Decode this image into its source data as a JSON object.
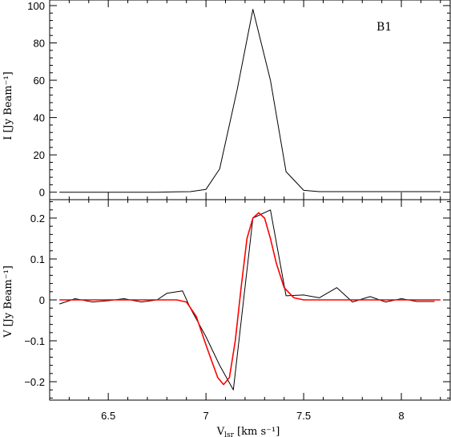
{
  "chart_data": [
    {
      "type": "line",
      "annotation": "B1",
      "ylabel": "I [Jy Beam⁻¹]",
      "xlabel": "",
      "xlim": [
        6.2,
        8.25
      ],
      "ylim": [
        -4,
        103
      ],
      "x_ticks": [
        "6.5",
        "7",
        "7.5",
        "8"
      ],
      "y_ticks": [
        "0",
        "20",
        "40",
        "60",
        "80",
        "100"
      ],
      "y_tick_values": [
        0,
        20,
        40,
        60,
        80,
        100
      ],
      "grid": false,
      "series": [
        {
          "color": "#000000",
          "x": [
            6.25,
            6.33,
            6.42,
            6.5,
            6.58,
            6.67,
            6.75,
            6.84,
            6.92,
            7.0,
            7.07,
            7.16,
            7.24,
            7.33,
            7.41,
            7.5,
            7.58,
            7.67,
            7.75,
            7.84,
            7.92,
            8.0,
            8.08,
            8.17,
            8.2
          ],
          "values": [
            0,
            0,
            0,
            0,
            0,
            0,
            0,
            0.2,
            0.3,
            1.5,
            12.5,
            55,
            98,
            60,
            11,
            1,
            0.3,
            0.3,
            0.3,
            0.3,
            0.3,
            0.3,
            0.3,
            0.3,
            0.3
          ]
        }
      ]
    },
    {
      "type": "line",
      "ylabel": "V [Jy Beam⁻¹]",
      "xlabel": "V",
      "xlabel_sub": "lsr",
      "xlabel_rest": " [km s⁻¹]",
      "xlim": [
        6.2,
        8.25
      ],
      "ylim": [
        -0.245,
        0.245
      ],
      "x_ticks": [
        "6.5",
        "7",
        "7.5",
        "8"
      ],
      "x_tick_values": [
        6.5,
        7,
        7.5,
        8
      ],
      "y_ticks": [
        "−0.2",
        "−0.1",
        "0",
        "0.1",
        "0.2"
      ],
      "y_tick_values": [
        -0.2,
        -0.1,
        0,
        0.1,
        0.2
      ],
      "grid": false,
      "series": [
        {
          "color": "#000000",
          "x": [
            6.25,
            6.33,
            6.42,
            6.5,
            6.58,
            6.67,
            6.75,
            6.8,
            6.88,
            6.92,
            7.0,
            7.07,
            7.14,
            7.24,
            7.33,
            7.41,
            7.5,
            7.58,
            7.67,
            7.75,
            7.84,
            7.92,
            8.0,
            8.08,
            8.17
          ],
          "values": [
            -0.01,
            0.003,
            -0.005,
            -0.002,
            0.003,
            -0.005,
            0.0,
            0.016,
            0.022,
            -0.02,
            -0.09,
            -0.16,
            -0.22,
            0.2,
            0.22,
            0.01,
            0.012,
            0.005,
            0.03,
            -0.005,
            0.008,
            -0.005,
            0.003,
            -0.004,
            -0.004
          ]
        },
        {
          "color": "#ff0000",
          "x": [
            6.25,
            6.85,
            6.9,
            6.95,
            7.0,
            7.03,
            7.06,
            7.09,
            7.12,
            7.15,
            7.18,
            7.21,
            7.24,
            7.27,
            7.3,
            7.33,
            7.36,
            7.4,
            7.45,
            7.5,
            8.2
          ],
          "values": [
            0.0,
            0.0,
            -0.005,
            -0.04,
            -0.11,
            -0.15,
            -0.19,
            -0.207,
            -0.19,
            -0.1,
            0.03,
            0.15,
            0.2,
            0.213,
            0.2,
            0.15,
            0.09,
            0.03,
            0.005,
            0.0,
            0.0
          ]
        }
      ]
    }
  ]
}
